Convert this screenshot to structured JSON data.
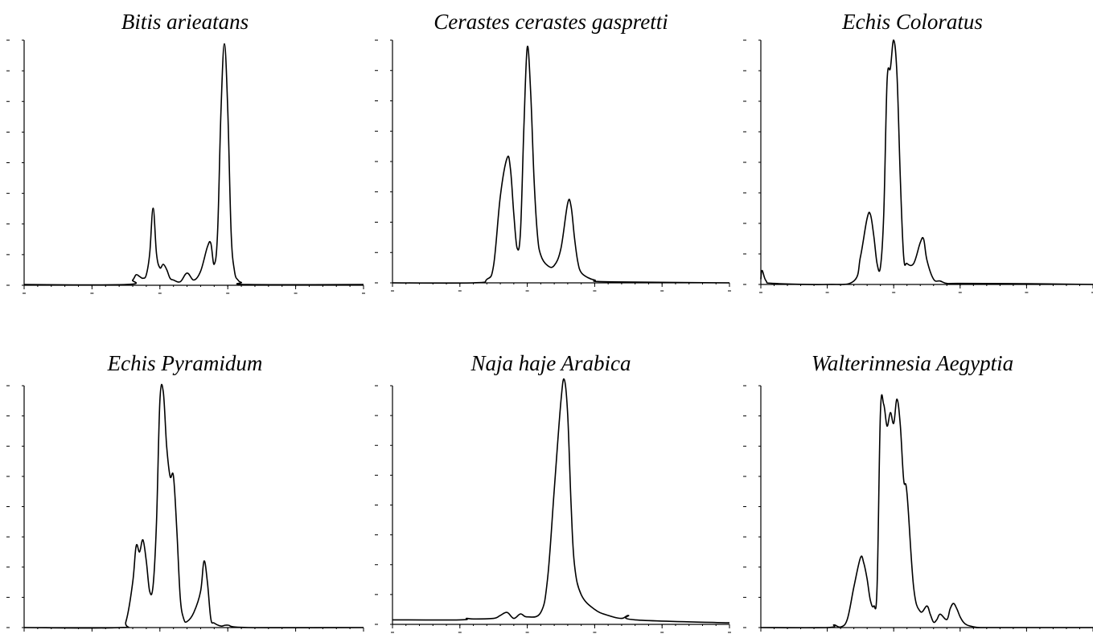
{
  "chart_data": [
    {
      "type": "line",
      "title": "Bitis arieatans",
      "xlabel": "",
      "ylabel": "",
      "xlim": [
        0,
        50
      ],
      "ylim": [
        0,
        7
      ],
      "grid": false,
      "series": [
        {
          "x": [
            0,
            15,
            16,
            16.5,
            17,
            17.5,
            18,
            18.5,
            19,
            19.5,
            20,
            20.5,
            21,
            21.5,
            22,
            23,
            24,
            25,
            26,
            27,
            27.5,
            28,
            28.5,
            29,
            29.5,
            30,
            30.5,
            31,
            31.5,
            32,
            33,
            50
          ],
          "y": [
            0.02,
            0.02,
            0.15,
            0.3,
            0.25,
            0.2,
            0.3,
            0.9,
            2.2,
            0.9,
            0.5,
            0.6,
            0.45,
            0.2,
            0.15,
            0.1,
            0.35,
            0.15,
            0.4,
            1.1,
            1.2,
            0.6,
            1.5,
            5.0,
            6.9,
            5.0,
            1.5,
            0.4,
            0.15,
            0.08,
            0.02,
            0.02
          ]
        }
      ]
    },
    {
      "type": "line",
      "title": "Cerastes cerastes gaspretti",
      "xlabel": "",
      "ylabel": "",
      "xlim": [
        0,
        50
      ],
      "ylim": [
        0,
        7
      ],
      "grid": false,
      "series": [
        {
          "x": [
            0,
            12,
            14,
            15,
            16,
            17,
            17.5,
            18,
            18.5,
            19,
            19.5,
            20,
            20.5,
            21,
            21.5,
            22,
            23,
            24,
            25,
            26,
            26.5,
            27,
            27.5,
            28,
            29,
            30,
            32,
            50
          ],
          "y": [
            0,
            0,
            0.1,
            0.5,
            2.5,
            3.6,
            3.3,
            2.0,
            1.0,
            1.5,
            4.5,
            6.8,
            5.5,
            3.0,
            1.4,
            0.8,
            0.5,
            0.5,
            1.0,
            2.3,
            2.2,
            1.3,
            0.6,
            0.3,
            0.15,
            0.08,
            0.03,
            0
          ]
        }
      ]
    },
    {
      "type": "line",
      "title": "Echis Coloratus",
      "xlabel": "",
      "ylabel": "",
      "xlim": [
        0,
        50
      ],
      "ylim": [
        0,
        7
      ],
      "grid": false,
      "series": [
        {
          "x": [
            0,
            0.2,
            0.8,
            2,
            10,
            14,
            15,
            16,
            16.5,
            17,
            17.5,
            18,
            18.5,
            19,
            19.5,
            20,
            20.5,
            21,
            21.5,
            22,
            23,
            24,
            24.5,
            25,
            26,
            27,
            28,
            30,
            40,
            50
          ],
          "y": [
            0.15,
            0.4,
            0.1,
            0.03,
            0,
            0.1,
            0.8,
            1.9,
            2.0,
            1.4,
            0.6,
            0.5,
            2.0,
            5.8,
            6.2,
            7.0,
            6.0,
            3.0,
            0.8,
            0.6,
            0.6,
            1.2,
            1.3,
            0.7,
            0.15,
            0.1,
            0.03,
            0.03,
            0.02,
            0
          ]
        }
      ]
    },
    {
      "type": "line",
      "title": "Echis Pyramidum",
      "xlabel": "",
      "ylabel": "",
      "xlim": [
        0,
        50
      ],
      "ylim": [
        0,
        8
      ],
      "grid": false,
      "series": [
        {
          "x": [
            0,
            14,
            15,
            16,
            16.5,
            17,
            17.5,
            18,
            18.5,
            19,
            19.5,
            20,
            20.5,
            21,
            21.5,
            22,
            22.5,
            23,
            23.5,
            24,
            25,
            26,
            26.5,
            27,
            27.5,
            28,
            29,
            30,
            33,
            50
          ],
          "y": [
            0,
            0,
            0.2,
            1.5,
            2.7,
            2.5,
            2.9,
            2.2,
            1.2,
            1.4,
            3.5,
            7.5,
            7.8,
            6.0,
            5.0,
            5.0,
            3.2,
            1.0,
            0.3,
            0.2,
            0.5,
            1.2,
            2.2,
            1.5,
            0.3,
            0.15,
            0.05,
            0.08,
            0,
            0
          ]
        }
      ]
    },
    {
      "type": "line",
      "title": "Naja haje Arabica",
      "xlabel": "",
      "ylabel": "",
      "xlim": [
        0,
        50
      ],
      "ylim": [
        0,
        8
      ],
      "grid": false,
      "series": [
        {
          "x": [
            0,
            10,
            11,
            12,
            15,
            16,
            17,
            18,
            19,
            20,
            22,
            23,
            24,
            25,
            25.5,
            26,
            26.5,
            27,
            28,
            30,
            32,
            34,
            35,
            36,
            50
          ],
          "y": [
            0.15,
            0.15,
            0.2,
            0.18,
            0.2,
            0.3,
            0.4,
            0.2,
            0.35,
            0.25,
            0.4,
            1.5,
            4.5,
            7.5,
            8.2,
            7.0,
            4.0,
            2.0,
            1.0,
            0.5,
            0.3,
            0.2,
            0.3,
            0.15,
            0.05
          ]
        }
      ]
    },
    {
      "type": "line",
      "title": "Walterinnesia Aegyptia",
      "xlabel": "",
      "ylabel": "",
      "xlim": [
        0,
        50
      ],
      "ylim": [
        0,
        9
      ],
      "grid": false,
      "series": [
        {
          "x": [
            0,
            10,
            11,
            12,
            13,
            14,
            15,
            15.5,
            16,
            16.5,
            17,
            17.5,
            18,
            18.5,
            19,
            19.5,
            20,
            20.5,
            21,
            21.5,
            22,
            23,
            24,
            25,
            25.5,
            26,
            26.5,
            27,
            28,
            28.5,
            29,
            29.5,
            30,
            30.5,
            31,
            32,
            33,
            34,
            50
          ],
          "y": [
            0,
            0,
            0.1,
            0.02,
            0.3,
            1.5,
            2.6,
            2.4,
            1.8,
            1.0,
            0.8,
            1.5,
            8.0,
            8.3,
            7.5,
            8.0,
            7.6,
            8.5,
            7.5,
            5.5,
            5.0,
            1.5,
            0.6,
            0.8,
            0.5,
            0.2,
            0.3,
            0.5,
            0.3,
            0.7,
            0.9,
            0.7,
            0.4,
            0.2,
            0.1,
            0.03,
            0,
            0,
            0
          ]
        }
      ]
    }
  ]
}
